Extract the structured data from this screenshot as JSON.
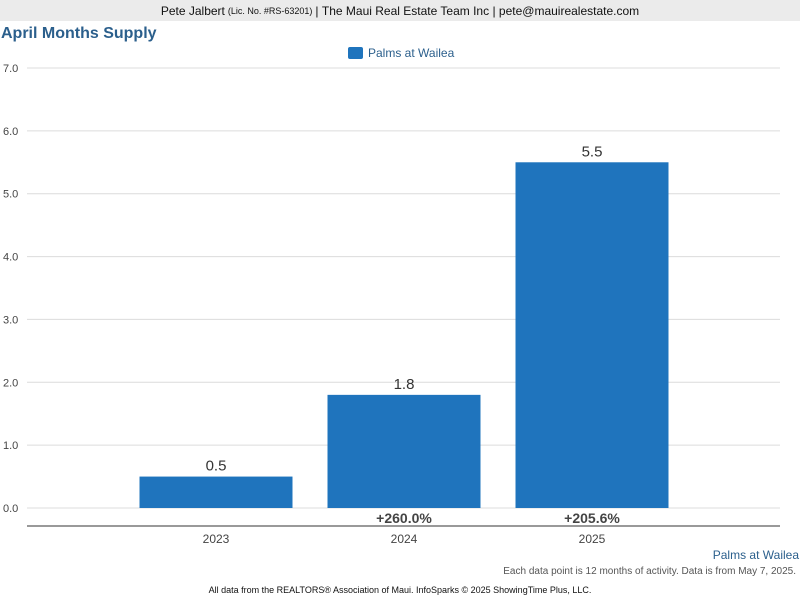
{
  "header": {
    "agent": "Pete Jalbert",
    "license": "(Lic. No. #RS-63201)",
    "separator1": "|",
    "company": "The Maui Real Estate Team Inc",
    "separator2": "|",
    "email": "pete@mauirealestate.com"
  },
  "colors": {
    "bar": "#1f74bd",
    "grid": "#dcdcdc",
    "axis": "#333333",
    "title": "#2b5f8c"
  },
  "chart_data": {
    "type": "bar",
    "title": "April Months Supply",
    "xlabel": "",
    "ylabel": "",
    "categories": [
      "2023",
      "2024",
      "2025"
    ],
    "series": [
      {
        "name": "Palms at Wailea",
        "values": [
          0.5,
          1.8,
          5.5
        ],
        "labels": [
          "0.5",
          "1.8",
          "5.5"
        ]
      }
    ],
    "change_labels": [
      "",
      "+260.0%",
      "+205.6%"
    ],
    "ylim": [
      0,
      7
    ],
    "yticks": [
      "0.0",
      "1.0",
      "2.0",
      "3.0",
      "4.0",
      "5.0",
      "6.0",
      "7.0"
    ],
    "grid": true,
    "legend": "top-center"
  },
  "footer": {
    "series_label": "Palms at Wailea",
    "note": "Each data point is 12 months of activity. Data is from May 7, 2025.",
    "source": "All data from the REALTORS® Association of Maui. InfoSparks © 2025 ShowingTime Plus, LLC."
  }
}
